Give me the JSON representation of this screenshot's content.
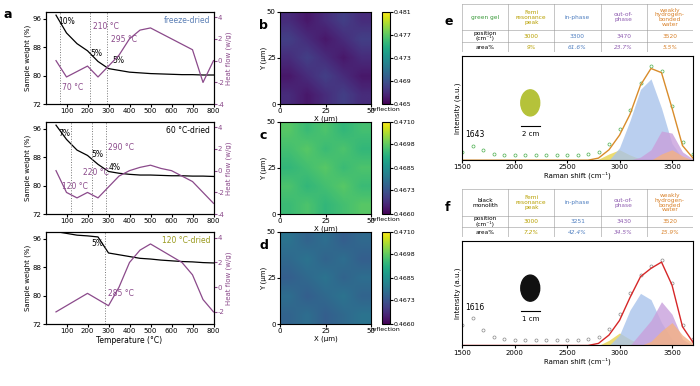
{
  "chart_data": [
    {
      "type": "line",
      "label": "a",
      "subtitle": "freeze-dried",
      "subtitle_color": "#5b7fb5",
      "ylabel": "Sample weight (%)",
      "y2label": "Heat flow (w/g)",
      "x": [
        50,
        100,
        150,
        200,
        250,
        300,
        350,
        400,
        450,
        500,
        550,
        600,
        650,
        700,
        750,
        800
      ],
      "xlim": [
        0,
        800
      ],
      "xticks": [
        100,
        200,
        300,
        400,
        500,
        600,
        700,
        800
      ],
      "ylim": [
        72,
        98
      ],
      "yticks": [
        72,
        80,
        88,
        96
      ],
      "y2lim": [
        -4,
        4.5
      ],
      "y2ticks": [
        -4,
        -2,
        0,
        2,
        4
      ],
      "series": [
        {
          "color": "#000000",
          "values": [
            97,
            92,
            89,
            87,
            84,
            82,
            81.5,
            81,
            80.8,
            80.6,
            80.5,
            80.4,
            80.3,
            80.3,
            80.2,
            80.2
          ]
        },
        {
          "color": "#8b4a8b",
          "axis": "y2",
          "values": [
            0,
            -1.5,
            -1,
            -0.5,
            -1.5,
            -0.5,
            0.5,
            2,
            2.8,
            3,
            2.5,
            2,
            1.5,
            1,
            -2,
            0
          ]
        }
      ],
      "vlines": [
        70,
        210,
        295
      ],
      "annotations": [
        {
          "text": "10%",
          "x": 60,
          "y": 94.5,
          "color": "#000000"
        },
        {
          "text": "5%",
          "x": 215,
          "y": 85.5,
          "color": "#000000"
        },
        {
          "text": "5%",
          "x": 320,
          "y": 83.5,
          "color": "#000000"
        },
        {
          "text": "210 °C",
          "x": 225,
          "y": 93,
          "color": "#8b4a8b"
        },
        {
          "text": "295 °C",
          "x": 310,
          "y": 89.5,
          "color": "#8b4a8b"
        },
        {
          "text": "70 °C",
          "x": 80,
          "y": 76,
          "color": "#8b4a8b"
        }
      ]
    },
    {
      "type": "line",
      "subtitle": "60 °C-dried",
      "subtitle_color": "#000000",
      "ylabel": "Sample weight (%)",
      "y2label": "Heat flow (w/g)",
      "x": [
        50,
        100,
        150,
        200,
        250,
        300,
        350,
        400,
        450,
        500,
        550,
        600,
        650,
        700,
        750,
        800
      ],
      "xlim": [
        0,
        800
      ],
      "xticks": [
        100,
        200,
        300,
        400,
        500,
        600,
        700,
        800
      ],
      "ylim": [
        72,
        98
      ],
      "yticks": [
        72,
        80,
        88,
        96
      ],
      "y2lim": [
        -4,
        4.5
      ],
      "y2ticks": [
        -4,
        -2,
        0,
        2,
        4
      ],
      "series": [
        {
          "color": "#000000",
          "values": [
            97,
            93,
            90,
            88.5,
            86,
            84,
            83.5,
            83.2,
            83,
            83,
            82.9,
            82.8,
            82.8,
            82.7,
            82.7,
            82.6
          ]
        },
        {
          "color": "#8b4a8b",
          "axis": "y2",
          "values": [
            0,
            -2,
            -2.5,
            -2,
            -2.5,
            -1.5,
            -0.5,
            0,
            0.3,
            0.5,
            0.2,
            0,
            -0.5,
            -1,
            -2,
            -3
          ]
        }
      ],
      "vlines": [
        120,
        220,
        290
      ],
      "annotations": [
        {
          "text": "7%",
          "x": 60,
          "y": 94,
          "color": "#000000"
        },
        {
          "text": "5%",
          "x": 220,
          "y": 88,
          "color": "#000000"
        },
        {
          "text": "4%",
          "x": 300,
          "y": 84.5,
          "color": "#000000"
        },
        {
          "text": "120 °C",
          "x": 80,
          "y": 79,
          "color": "#8b4a8b"
        },
        {
          "text": "220 °C",
          "x": 180,
          "y": 83,
          "color": "#8b4a8b"
        },
        {
          "text": "290 °C",
          "x": 300,
          "y": 90,
          "color": "#8b4a8b"
        }
      ]
    },
    {
      "type": "line",
      "subtitle": "120 °C-dried",
      "subtitle_color": "#9a9a1e",
      "ylabel": "Sample weight (%)",
      "y2label": "Heat flow (w/g)",
      "xlabel": "Temperature (°C)",
      "x": [
        50,
        100,
        150,
        200,
        250,
        300,
        350,
        400,
        450,
        500,
        550,
        600,
        650,
        700,
        750,
        800
      ],
      "xlim": [
        0,
        800
      ],
      "xticks": [
        100,
        200,
        300,
        400,
        500,
        600,
        700,
        800
      ],
      "ylim": [
        72,
        98
      ],
      "yticks": [
        72,
        80,
        88,
        96
      ],
      "y2lim": [
        -3,
        4.5
      ],
      "y2ticks": [
        -2,
        0,
        2,
        4
      ],
      "series": [
        {
          "color": "#000000",
          "values": [
            98,
            97.5,
            97,
            96.8,
            96.5,
            92,
            91.5,
            91,
            90.5,
            90.3,
            90,
            89.8,
            89.6,
            89.5,
            89.3,
            89.2
          ]
        },
        {
          "color": "#8b4a8b",
          "axis": "y2",
          "values": [
            -2,
            -1.5,
            -1,
            -0.5,
            -1,
            -1.5,
            0,
            2,
            3,
            3.5,
            3,
            2.5,
            2,
            1,
            -1,
            -2
          ]
        }
      ],
      "vlines": [
        285
      ],
      "annotations": [
        {
          "text": "5%",
          "x": 220,
          "y": 94,
          "color": "#000000"
        },
        {
          "text": "285 °C",
          "x": 300,
          "y": 80,
          "color": "#8b4a8b"
        }
      ]
    },
    {
      "type": "heatmap",
      "label": "b",
      "xlabel": "X (μm)",
      "ylabel": "Y (μm)",
      "xlim": [
        0,
        50
      ],
      "ylim": [
        0,
        50
      ],
      "xticks": [
        0,
        25,
        50
      ],
      "yticks": [
        0,
        25,
        50
      ],
      "cells": [
        [
          0.467,
          0.466,
          0.467,
          0.468,
          0.467
        ],
        [
          0.466,
          0.467,
          0.468,
          0.467,
          0.466
        ],
        [
          0.467,
          0.468,
          0.467,
          0.466,
          0.467
        ],
        [
          0.468,
          0.467,
          0.466,
          0.467,
          0.468
        ],
        [
          0.467,
          0.466,
          0.467,
          0.468,
          0.467
        ]
      ],
      "clim": [
        0.465,
        0.481
      ],
      "cticks": [
        0.465,
        0.469,
        0.473,
        0.477,
        0.481
      ],
      "clabel": "reflection"
    },
    {
      "type": "heatmap",
      "label": "c",
      "xlabel": "X (μm)",
      "ylabel": "Y (μm)",
      "xlim": [
        0,
        50
      ],
      "ylim": [
        0,
        50
      ],
      "xticks": [
        0,
        25,
        50
      ],
      "yticks": [
        0,
        25,
        50
      ],
      "cells": [
        [
          0.4694,
          0.4696,
          0.4693,
          0.4695,
          0.4697
        ],
        [
          0.4696,
          0.4693,
          0.4695,
          0.4697,
          0.4694
        ],
        [
          0.4693,
          0.4695,
          0.4697,
          0.4694,
          0.4696
        ],
        [
          0.4695,
          0.4697,
          0.4694,
          0.4696,
          0.4693
        ],
        [
          0.4697,
          0.4694,
          0.4696,
          0.4693,
          0.4695
        ]
      ],
      "clim": [
        0.466,
        0.471
      ],
      "cticks": [
        {
          "value": 0.466,
          "label": "0.4660"
        },
        0.4673,
        0.4685,
        0.4698,
        {
          "value": 0.471,
          "label": "0.4710"
        }
      ],
      "clabel": "reflection"
    },
    {
      "type": "heatmap",
      "label": "d",
      "xlabel": "X (μm)",
      "ylabel": "Y (μm)",
      "xlim": [
        0,
        50
      ],
      "ylim": [
        0,
        50
      ],
      "xticks": [
        0,
        25,
        50
      ],
      "yticks": [
        0,
        25,
        50
      ],
      "cells": [
        [
          0.4676,
          0.4678,
          0.4675,
          0.4677,
          0.4679
        ],
        [
          0.4678,
          0.4675,
          0.4677,
          0.4679,
          0.4676
        ],
        [
          0.4675,
          0.4677,
          0.4679,
          0.4676,
          0.4678
        ],
        [
          0.4677,
          0.4679,
          0.4676,
          0.4678,
          0.4675
        ],
        [
          0.4679,
          0.4676,
          0.4678,
          0.4675,
          0.4677
        ]
      ],
      "clim": [
        0.466,
        0.471
      ],
      "cticks": [
        {
          "value": 0.466,
          "label": "0.4660"
        },
        0.4673,
        0.4685,
        0.4698,
        {
          "value": 0.471,
          "label": "0.4710"
        }
      ],
      "clabel": "reflection"
    },
    {
      "type": "spectrum",
      "label": "e",
      "xlabel": "Raman shift (cm⁻¹)",
      "ylabel": "Intensity (a.u.)",
      "tick_labels": "x",
      "xlim": [
        1500,
        3700
      ],
      "xticks": [
        1500,
        2000,
        2500,
        3000,
        3500
      ],
      "ylim": [
        0,
        1
      ],
      "x": [
        1500,
        1600,
        1700,
        1800,
        1900,
        2000,
        2100,
        2200,
        2300,
        2400,
        2500,
        2600,
        2700,
        2800,
        2900,
        3000,
        3100,
        3200,
        3300,
        3400,
        3500,
        3600,
        3700
      ],
      "table": {
        "header": [
          "green gel",
          "Femi\nresonance\npeak",
          "in-phase",
          "out-of-\nphase",
          "weakly\nhydrogen-\nbonded\nwater"
        ],
        "colors": [
          "#3a9a3a",
          "#b8a000",
          "#4f7fc0",
          "#8e5cb0",
          "#d9822b"
        ],
        "rows": [
          [
            "position\n(cm⁻¹)",
            "3000",
            "3300",
            "3470",
            "3520"
          ],
          [
            "area%",
            "9%",
            "61.6%",
            "23.7%",
            "5.5%"
          ]
        ]
      },
      "annotations": [
        {
          "text": "1643",
          "x": 1530,
          "y": 0.22,
          "color": "#000000"
        }
      ],
      "inset": {
        "text": "2 cm",
        "color": "#b5c23a"
      },
      "series": [
        {
          "type": "scatter",
          "marker": "o",
          "color": "#4caf50",
          "values": [
            0.08,
            0.14,
            0.1,
            0.06,
            0.05,
            0.05,
            0.05,
            0.05,
            0.05,
            0.05,
            0.05,
            0.05,
            0.06,
            0.08,
            0.16,
            0.3,
            0.48,
            0.74,
            0.9,
            0.86,
            0.52,
            0.17,
            0.06
          ]
        },
        {
          "type": "area",
          "color": "#e8d44d",
          "values": [
            0,
            0,
            0,
            0,
            0,
            0,
            0,
            0,
            0,
            0,
            0,
            0,
            0,
            0.01,
            0.06,
            0.1,
            0.05,
            0.01,
            0,
            0,
            0,
            0,
            0
          ]
        },
        {
          "type": "area",
          "color": "#a9c4eb",
          "values": [
            0,
            0,
            0,
            0,
            0,
            0,
            0,
            0,
            0,
            0,
            0,
            0,
            0,
            0,
            0,
            0.12,
            0.38,
            0.68,
            0.78,
            0.5,
            0.16,
            0.02,
            0
          ]
        },
        {
          "type": "area",
          "color": "#c9a0dc",
          "values": [
            0,
            0,
            0,
            0,
            0,
            0,
            0,
            0,
            0,
            0,
            0,
            0,
            0,
            0,
            0,
            0,
            0,
            0.03,
            0.1,
            0.28,
            0.26,
            0.08,
            0.01
          ]
        },
        {
          "type": "area",
          "color": "#f4b183",
          "values": [
            0,
            0,
            0,
            0,
            0,
            0,
            0,
            0,
            0,
            0,
            0,
            0,
            0,
            0,
            0,
            0,
            0,
            0,
            0,
            0.06,
            0.1,
            0.04,
            0
          ]
        },
        {
          "type": "line",
          "color": "#d98c2b",
          "values": [
            0,
            0,
            0,
            0,
            0,
            0,
            0,
            0,
            0,
            0,
            0,
            0,
            0,
            0.02,
            0.1,
            0.24,
            0.44,
            0.72,
            0.88,
            0.84,
            0.5,
            0.14,
            0.02
          ]
        }
      ]
    },
    {
      "type": "spectrum",
      "label": "f",
      "xlabel": "Raman shift (cm⁻¹)",
      "ylabel": "Intensity (a.u.)",
      "tick_labels": "x",
      "xlim": [
        1500,
        3700
      ],
      "xticks": [
        1500,
        2000,
        2500,
        3000,
        3500
      ],
      "ylim": [
        0,
        1
      ],
      "x": [
        1500,
        1600,
        1700,
        1800,
        1900,
        2000,
        2100,
        2200,
        2300,
        2400,
        2500,
        2600,
        2700,
        2800,
        2900,
        3000,
        3100,
        3200,
        3300,
        3400,
        3500,
        3600,
        3700
      ],
      "table": {
        "header": [
          "black\nmonolith",
          "Femi\nresonance\npeak",
          "in-phase",
          "out-of-\nphase",
          "weakly\nhydrogen-\nbonded\nwater"
        ],
        "colors": [
          "#000000",
          "#b8a000",
          "#4f7fc0",
          "#8e5cb0",
          "#d9822b"
        ],
        "rows": [
          [
            "position\n(cm⁻¹)",
            "3000",
            "3251",
            "3430",
            "3520"
          ],
          [
            "area%",
            "7.2%",
            "42.4%",
            "34.5%",
            "15.9%"
          ]
        ]
      },
      "annotations": [
        {
          "text": "1616",
          "x": 1530,
          "y": 0.34,
          "color": "#000000"
        }
      ],
      "inset": {
        "text": "1 cm",
        "color": "#111111"
      },
      "series": [
        {
          "type": "scatter",
          "marker": "o",
          "color": "#888888",
          "values": [
            0.2,
            0.26,
            0.15,
            0.08,
            0.06,
            0.05,
            0.05,
            0.05,
            0.05,
            0.05,
            0.05,
            0.05,
            0.06,
            0.08,
            0.16,
            0.3,
            0.5,
            0.68,
            0.76,
            0.82,
            0.6,
            0.2,
            0.06
          ]
        },
        {
          "type": "area",
          "color": "#e8d44d",
          "values": [
            0,
            0,
            0,
            0,
            0,
            0,
            0,
            0,
            0,
            0,
            0,
            0,
            0,
            0,
            0.05,
            0.12,
            0.06,
            0.01,
            0,
            0,
            0,
            0,
            0
          ]
        },
        {
          "type": "area",
          "color": "#a9c4eb",
          "values": [
            0,
            0,
            0,
            0,
            0,
            0,
            0,
            0,
            0,
            0,
            0,
            0,
            0,
            0,
            0,
            0.1,
            0.34,
            0.5,
            0.44,
            0.22,
            0.06,
            0,
            0
          ]
        },
        {
          "type": "area",
          "color": "#c9a0dc",
          "values": [
            0,
            0,
            0,
            0,
            0,
            0,
            0,
            0,
            0,
            0,
            0,
            0,
            0,
            0,
            0,
            0,
            0,
            0.12,
            0.24,
            0.42,
            0.3,
            0.06,
            0
          ]
        },
        {
          "type": "area",
          "color": "#f4b183",
          "values": [
            0,
            0,
            0,
            0,
            0,
            0,
            0,
            0,
            0,
            0,
            0,
            0,
            0,
            0,
            0,
            0,
            0,
            0,
            0.04,
            0.14,
            0.22,
            0.1,
            0.02
          ]
        },
        {
          "type": "line",
          "color": "#d62728",
          "values": [
            0,
            0,
            0,
            0,
            0,
            0,
            0,
            0,
            0,
            0,
            0,
            0,
            0,
            0.02,
            0.1,
            0.24,
            0.46,
            0.66,
            0.74,
            0.8,
            0.58,
            0.18,
            0.03
          ]
        }
      ]
    }
  ]
}
